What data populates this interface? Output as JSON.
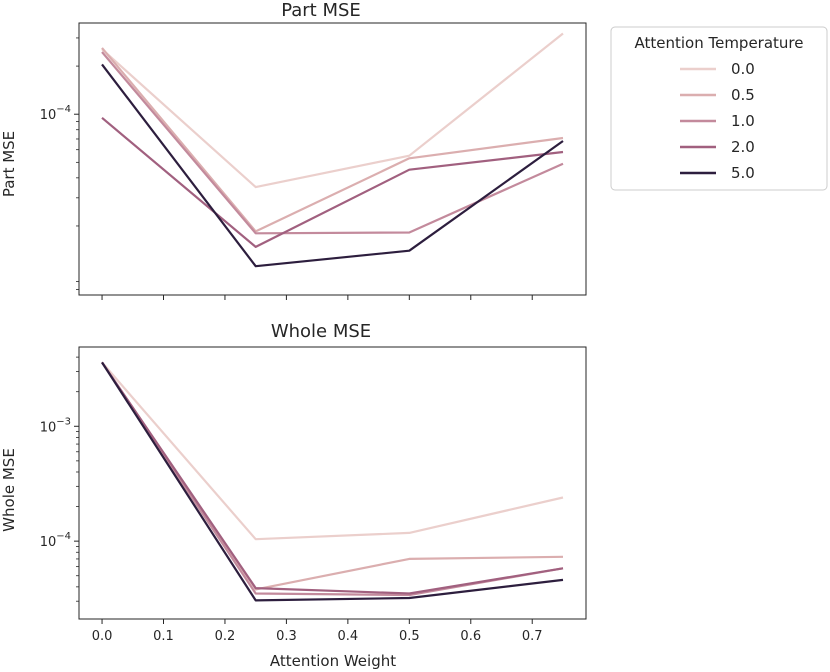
{
  "chart_data": [
    {
      "type": "line",
      "title": "Part MSE",
      "xlabel": "",
      "ylabel": "Part MSE",
      "yscale": "log",
      "xlim": [
        -0.0375,
        0.7875
      ],
      "ylim": [
        7.4e-06,
        0.000372
      ],
      "xticks": [
        0.0,
        0.1,
        0.2,
        0.3,
        0.4,
        0.5,
        0.6,
        0.7
      ],
      "xticklabels_visible": false,
      "yticks": [
        {
          "value": 0.0001,
          "label_base": "10",
          "label_exp": "−4"
        }
      ],
      "x": [
        0.0,
        0.25,
        0.5,
        0.75
      ],
      "series": [
        {
          "name": "0.0",
          "color": "#ebcfcc",
          "values": [
            0.000255,
            3.5e-05,
            5.5e-05,
            0.00032
          ]
        },
        {
          "name": "0.5",
          "color": "#dbaeaf",
          "values": [
            0.00026,
            1.85e-05,
            5.3e-05,
            7.1e-05
          ]
        },
        {
          "name": "1.0",
          "color": "#c38a9c",
          "values": [
            0.000245,
            1.8e-05,
            1.82e-05,
            4.9e-05
          ]
        },
        {
          "name": "2.0",
          "color": "#a1607f",
          "values": [
            9.5e-05,
            1.48e-05,
            4.5e-05,
            5.8e-05
          ]
        },
        {
          "name": "5.0",
          "color": "#2d1e3e",
          "values": [
            0.000205,
            1.12e-05,
            1.4e-05,
            6.8e-05
          ]
        }
      ]
    },
    {
      "type": "line",
      "title": "Whole MSE",
      "xlabel": "Attention Weight",
      "ylabel": "Whole MSE",
      "yscale": "log",
      "xlim": [
        -0.0375,
        0.7875
      ],
      "ylim": [
        2.1e-05,
        0.0049
      ],
      "xticks": [
        0.0,
        0.1,
        0.2,
        0.3,
        0.4,
        0.5,
        0.6,
        0.7
      ],
      "xticklabels": [
        "0.0",
        "0.1",
        "0.2",
        "0.3",
        "0.4",
        "0.5",
        "0.6",
        "0.7"
      ],
      "yticks": [
        {
          "value": 0.001,
          "label_base": "10",
          "label_exp": "−3"
        },
        {
          "value": 0.0001,
          "label_base": "10",
          "label_exp": "−4"
        }
      ],
      "x": [
        0.0,
        0.25,
        0.5,
        0.75
      ],
      "series": [
        {
          "name": "0.0",
          "color": "#ebcfcc",
          "values": [
            0.0036,
            0.000104,
            0.000118,
            0.00024
          ]
        },
        {
          "name": "0.5",
          "color": "#dbaeaf",
          "values": [
            0.0036,
            3.8e-05,
            7e-05,
            7.3e-05
          ]
        },
        {
          "name": "1.0",
          "color": "#c38a9c",
          "values": [
            0.0036,
            3.5e-05,
            3.4e-05,
            5.8e-05
          ]
        },
        {
          "name": "2.0",
          "color": "#a1607f",
          "values": [
            0.0036,
            3.9e-05,
            3.5e-05,
            5.8e-05
          ]
        },
        {
          "name": "5.0",
          "color": "#2d1e3e",
          "values": [
            0.0036,
            3.05e-05,
            3.2e-05,
            4.6e-05
          ]
        }
      ]
    }
  ],
  "legend": {
    "title": "Attention Temperature",
    "placement": "outside top-right",
    "entries": [
      {
        "label": "0.0",
        "color": "#ebcfcc"
      },
      {
        "label": "0.5",
        "color": "#dbaeaf"
      },
      {
        "label": "1.0",
        "color": "#c38a9c"
      },
      {
        "label": "2.0",
        "color": "#a1607f"
      },
      {
        "label": "5.0",
        "color": "#2d1e3e"
      }
    ]
  }
}
